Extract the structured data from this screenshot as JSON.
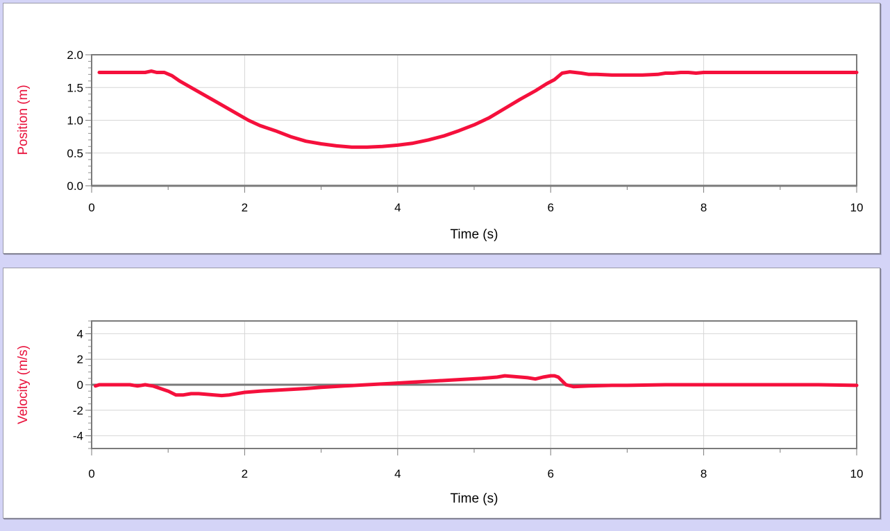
{
  "colors": {
    "series": "#f5103c",
    "grid": "#d6d6d6",
    "frame": "#7a7a7a",
    "zero_line": "#7a7a7a",
    "ylabel": "#e8103a",
    "background": "#d4d4f7"
  },
  "chart_data": [
    {
      "type": "line",
      "xlabel": "Time (s)",
      "ylabel": "Position (m)",
      "xlim": [
        0,
        10
      ],
      "ylim": [
        0,
        2
      ],
      "x_ticks": [
        "0",
        "2",
        "4",
        "6",
        "8",
        "10"
      ],
      "y_ticks": [
        "0.0",
        "0.5",
        "1.0",
        "1.5",
        "2.0"
      ],
      "grid": true,
      "series": [
        {
          "x": [
            0.1,
            0.3,
            0.5,
            0.7,
            0.78,
            0.85,
            0.95,
            1.05,
            1.15,
            1.3,
            1.45,
            1.6,
            1.75,
            1.9,
            2.05,
            2.2,
            2.4,
            2.6,
            2.8,
            3.0,
            3.2,
            3.4,
            3.6,
            3.8,
            4.0,
            4.2,
            4.4,
            4.6,
            4.8,
            5.0,
            5.2,
            5.4,
            5.6,
            5.8,
            5.95,
            6.05,
            6.15,
            6.25,
            6.4,
            6.5,
            6.6,
            6.8,
            7.0,
            7.2,
            7.4,
            7.5,
            7.6,
            7.7,
            7.8,
            7.9,
            8.0,
            8.5,
            9.0,
            9.5,
            10.0
          ],
          "y": [
            1.73,
            1.73,
            1.73,
            1.73,
            1.75,
            1.73,
            1.73,
            1.68,
            1.6,
            1.5,
            1.4,
            1.3,
            1.2,
            1.1,
            1.0,
            0.92,
            0.84,
            0.75,
            0.68,
            0.64,
            0.61,
            0.59,
            0.59,
            0.6,
            0.62,
            0.65,
            0.7,
            0.76,
            0.84,
            0.93,
            1.04,
            1.18,
            1.32,
            1.45,
            1.56,
            1.62,
            1.72,
            1.74,
            1.72,
            1.7,
            1.7,
            1.69,
            1.69,
            1.69,
            1.7,
            1.72,
            1.72,
            1.73,
            1.73,
            1.72,
            1.73,
            1.73,
            1.73,
            1.73,
            1.73
          ]
        }
      ]
    },
    {
      "type": "line",
      "xlabel": "Time (s)",
      "ylabel": "Velocity (m/s)",
      "xlim": [
        0,
        10
      ],
      "ylim": [
        -5,
        5
      ],
      "x_ticks": [
        "0",
        "2",
        "4",
        "6",
        "8",
        "10"
      ],
      "y_ticks": [
        "-4",
        "-2",
        "0",
        "2",
        "4"
      ],
      "y_tick_values": [
        -4,
        -2,
        0,
        2,
        4
      ],
      "grid": true,
      "series": [
        {
          "x": [
            0.05,
            0.1,
            0.3,
            0.5,
            0.6,
            0.7,
            0.8,
            0.9,
            1.0,
            1.1,
            1.2,
            1.3,
            1.4,
            1.6,
            1.7,
            1.8,
            2.0,
            2.2,
            2.5,
            2.8,
            3.0,
            3.3,
            3.6,
            3.9,
            4.2,
            4.5,
            4.8,
            5.1,
            5.3,
            5.4,
            5.5,
            5.7,
            5.8,
            5.9,
            6.0,
            6.05,
            6.1,
            6.15,
            6.2,
            6.3,
            6.5,
            6.8,
            7.0,
            7.5,
            8.0,
            8.5,
            9.0,
            9.5,
            10.0
          ],
          "y": [
            -0.1,
            0.0,
            0.0,
            0.0,
            -0.1,
            0.0,
            -0.1,
            -0.3,
            -0.5,
            -0.8,
            -0.8,
            -0.7,
            -0.7,
            -0.8,
            -0.85,
            -0.8,
            -0.6,
            -0.5,
            -0.4,
            -0.3,
            -0.2,
            -0.1,
            0.0,
            0.1,
            0.2,
            0.3,
            0.4,
            0.5,
            0.6,
            0.7,
            0.65,
            0.55,
            0.45,
            0.6,
            0.7,
            0.7,
            0.6,
            0.3,
            0.0,
            -0.15,
            -0.1,
            -0.05,
            -0.05,
            0.0,
            0.0,
            0.0,
            0.0,
            0.0,
            -0.05
          ]
        }
      ]
    }
  ]
}
